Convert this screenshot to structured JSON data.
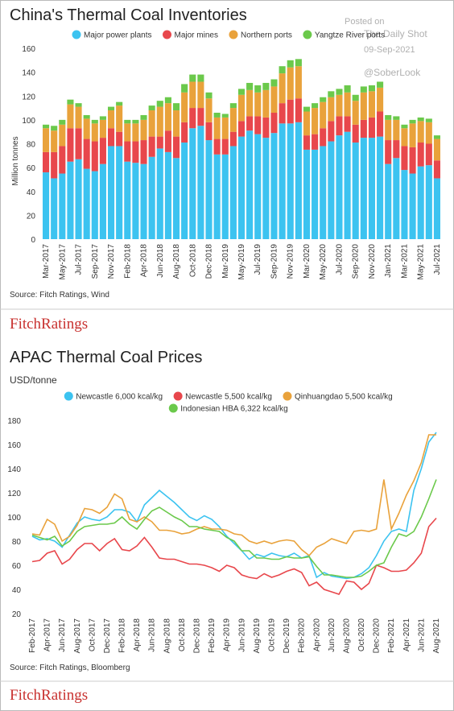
{
  "chart_data": [
    {
      "type": "bar",
      "stacked": true,
      "title": "China's Thermal Coal Inventories",
      "ylabel": "Million tonnes",
      "source": "Source: Fitch Ratings, Wind",
      "logo": "FitchRatings",
      "grid": false,
      "categories": [
        "Mar-2017",
        null,
        "May-2017",
        null,
        "Jul-2017",
        null,
        "Sep-2017",
        null,
        "Nov-2017",
        null,
        "Feb-2018",
        null,
        "Apr-2018",
        null,
        "Jun-2018",
        null,
        "Aug-2018",
        null,
        "Oct-2018",
        null,
        "Dec-2018",
        null,
        "Mar-2019",
        null,
        "May-2019",
        null,
        "Jul-2019",
        null,
        "Sep-2019",
        null,
        "Nov-2019",
        null,
        "Mar-2020",
        null,
        "May-2020",
        null,
        "Jul-2020",
        null,
        "Sep-2020",
        null,
        "Nov-2020",
        null,
        "Jan-2021",
        null,
        "Mar-2021",
        null,
        "May-2021",
        null,
        "Jul-2021"
      ],
      "series": [
        {
          "name": "Major power plants",
          "color": "#3cc3f0",
          "values": [
            56,
            51,
            55,
            65,
            67,
            59,
            57,
            63,
            78,
            78,
            65,
            64,
            63,
            69,
            76,
            73,
            68,
            81,
            93,
            95,
            83,
            71,
            71,
            78,
            86,
            91,
            88,
            85,
            89,
            97,
            97,
            98,
            75,
            75,
            78,
            82,
            87,
            90,
            81,
            85,
            85,
            86,
            63,
            68,
            58,
            55,
            61,
            62,
            51
          ]
        },
        {
          "name": "Major mines",
          "color": "#e8474c",
          "values": [
            17,
            22,
            23,
            28,
            26,
            25,
            25,
            22,
            15,
            12,
            17,
            18,
            20,
            17,
            10,
            18,
            18,
            17,
            17,
            15,
            15,
            13,
            13,
            12,
            13,
            12,
            15,
            17,
            17,
            17,
            20,
            20,
            12,
            13,
            15,
            17,
            16,
            13,
            15,
            15,
            17,
            21,
            20,
            15,
            20,
            22,
            20,
            18,
            15
          ]
        },
        {
          "name": "Northern ports",
          "color": "#e9a23b",
          "values": [
            20,
            18,
            18,
            20,
            18,
            17,
            15,
            15,
            15,
            22,
            15,
            15,
            17,
            22,
            25,
            23,
            22,
            25,
            22,
            22,
            20,
            18,
            18,
            20,
            22,
            22,
            20,
            23,
            22,
            25,
            27,
            27,
            20,
            22,
            22,
            20,
            18,
            20,
            20,
            23,
            22,
            20,
            17,
            17,
            15,
            20,
            18,
            18,
            18
          ]
        },
        {
          "name": "Yangtze River ports",
          "color": "#6bc94b",
          "values": [
            3,
            4,
            4,
            4,
            3,
            3,
            3,
            3,
            3,
            3,
            3,
            3,
            4,
            4,
            5,
            5,
            6,
            7,
            6,
            6,
            5,
            4,
            3,
            4,
            5,
            6,
            6,
            6,
            6,
            6,
            6,
            6,
            4,
            4,
            4,
            5,
            5,
            6,
            5,
            5,
            5,
            5,
            4,
            3,
            3,
            3,
            3,
            3,
            3
          ]
        }
      ],
      "ylim": [
        0,
        160
      ],
      "yticks": [
        0,
        20,
        40,
        60,
        80,
        100,
        120,
        140,
        160
      ]
    },
    {
      "type": "line",
      "title": "APAC Thermal Coal Prices",
      "ylabel": "USD/tonne",
      "source": "Source: Fitch Ratings, Bloomberg",
      "logo": "FitchRatings",
      "grid": false,
      "categories": [
        "Feb-2017",
        null,
        "Apr-2017",
        null,
        "Jun-2017",
        null,
        "Aug-2017",
        null,
        "Oct-2017",
        null,
        "Dec-2017",
        null,
        "Feb-2018",
        null,
        "Apr-2018",
        null,
        "Jun-2018",
        null,
        "Aug-2018",
        null,
        "Oct-2018",
        null,
        "Dec-2018",
        null,
        "Feb-2019",
        null,
        "Apr-2019",
        null,
        "Jun-2019",
        null,
        "Aug-2019",
        null,
        "Oct-2019",
        null,
        "Dec-2019",
        null,
        "Feb-2020",
        null,
        "Apr-2020",
        null,
        "Jun-2020",
        null,
        "Aug-2020",
        null,
        "Oct-2020",
        null,
        "Dec-2020",
        null,
        "Feb-2021",
        null,
        "Apr-2021",
        null,
        "Jun-2021",
        null,
        "Aug-2021"
      ],
      "series": [
        {
          "name": "Newcastle 6,000 kcal/kg",
          "color": "#3cc3f0",
          "values": [
            84,
            81,
            82,
            80,
            75,
            85,
            95,
            100,
            98,
            97,
            100,
            106,
            106,
            104,
            96,
            110,
            116,
            122,
            117,
            112,
            106,
            100,
            97,
            101,
            98,
            92,
            84,
            78,
            72,
            65,
            69,
            67,
            70,
            68,
            67,
            70,
            66,
            68,
            50,
            54,
            51,
            50,
            49,
            50,
            53,
            58,
            68,
            80,
            88,
            90,
            88,
            122,
            140,
            162,
            170
          ]
        },
        {
          "name": "Newcastle 5,500 kcal/kg",
          "color": "#e8474c",
          "values": [
            63,
            64,
            70,
            72,
            61,
            65,
            73,
            78,
            78,
            72,
            78,
            82,
            73,
            72,
            76,
            83,
            75,
            66,
            65,
            65,
            63,
            61,
            61,
            60,
            58,
            55,
            60,
            58,
            52,
            50,
            49,
            53,
            50,
            52,
            55,
            57,
            54,
            43,
            46,
            40,
            38,
            36,
            47,
            46,
            40,
            45,
            60,
            58,
            55,
            55,
            56,
            62,
            70,
            92,
            99
          ]
        },
        {
          "name": "Qinhuangdao 5,500 kcal/kg",
          "color": "#e9a23b",
          "values": [
            86,
            85,
            98,
            94,
            80,
            84,
            93,
            107,
            106,
            103,
            108,
            119,
            115,
            98,
            96,
            100,
            96,
            89,
            89,
            88,
            86,
            87,
            90,
            92,
            90,
            90,
            89,
            86,
            85,
            80,
            78,
            80,
            78,
            80,
            81,
            80,
            73,
            68,
            75,
            78,
            82,
            80,
            78,
            88,
            89,
            88,
            90,
            131,
            90,
            103,
            118,
            130,
            145,
            168,
            168
          ]
        },
        {
          "name": "Indonesian HBA 6,322 kcal/kg",
          "color": "#6bc94b",
          "values": [
            85,
            83,
            81,
            84,
            76,
            80,
            88,
            92,
            93,
            94,
            94,
            95,
            100,
            94,
            90,
            98,
            105,
            108,
            104,
            100,
            97,
            92,
            92,
            90,
            89,
            88,
            83,
            80,
            72,
            72,
            66,
            66,
            65,
            65,
            67,
            66,
            66,
            67,
            59,
            52,
            52,
            51,
            50,
            50,
            51,
            55,
            60,
            62,
            75,
            86,
            84,
            88,
            100,
            115,
            131
          ]
        }
      ],
      "ylim": [
        20,
        180
      ],
      "yticks": [
        20,
        40,
        60,
        80,
        100,
        120,
        140,
        160,
        180
      ]
    }
  ],
  "watermark": [
    "Posted on",
    "The Daily Shot",
    "09-Sep-2021",
    "@SoberLook"
  ]
}
